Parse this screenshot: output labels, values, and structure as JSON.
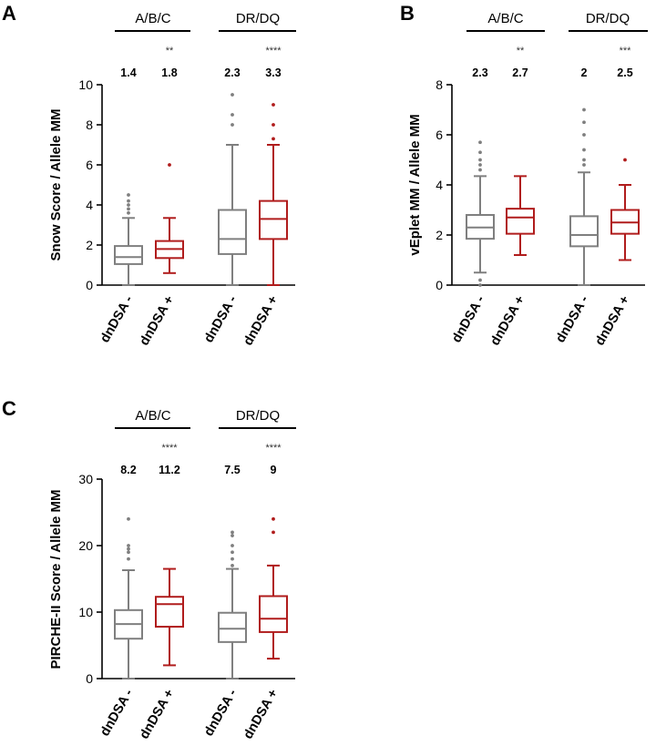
{
  "chart_data": [
    {
      "type": "box",
      "panel": "A",
      "ylabel": "Snow Score / Allele MM",
      "ylim": [
        0,
        10
      ],
      "yticks": [
        0,
        2,
        4,
        6,
        8,
        10
      ],
      "groups": [
        "A/B/C",
        "DR/DQ"
      ],
      "categories": [
        "dnDSA -",
        "dnDSA +",
        "dnDSA -",
        "dnDSA +"
      ],
      "median_labels": [
        "1.4",
        "1.8",
        "2.3",
        "3.3"
      ],
      "significance": [
        "",
        "**",
        "",
        "****"
      ],
      "series": [
        {
          "name": "A/B/C dnDSA -",
          "color": "#7f7f7f",
          "min": 0,
          "q1": 1.05,
          "median": 1.4,
          "q3": 1.95,
          "max": 3.35,
          "outliers": [
            3.6,
            3.8,
            4.0,
            4.2,
            4.5
          ]
        },
        {
          "name": "A/B/C dnDSA +",
          "color": "#b01c1c",
          "min": 0.6,
          "q1": 1.35,
          "median": 1.8,
          "q3": 2.2,
          "max": 3.35,
          "outliers": [
            6.0
          ]
        },
        {
          "name": "DR/DQ dnDSA -",
          "color": "#7f7f7f",
          "min": 0,
          "q1": 1.55,
          "median": 2.3,
          "q3": 3.75,
          "max": 7.0,
          "outliers": [
            8.0,
            8.5,
            9.5
          ]
        },
        {
          "name": "DR/DQ dnDSA +",
          "color": "#b01c1c",
          "min": 0,
          "q1": 2.3,
          "median": 3.3,
          "q3": 4.2,
          "max": 7.0,
          "outliers": [
            7.3,
            8.0,
            9.0
          ]
        }
      ]
    },
    {
      "type": "box",
      "panel": "B",
      "ylabel": "vEplet MM / Allele  MM",
      "ylim": [
        0,
        8
      ],
      "yticks": [
        0,
        2,
        4,
        6,
        8
      ],
      "groups": [
        "A/B/C",
        "DR/DQ"
      ],
      "categories": [
        "dnDSA -",
        "dnDSA +",
        "dnDSA -",
        "dnDSA +"
      ],
      "median_labels": [
        "2.3",
        "2.7",
        "2",
        "2.5"
      ],
      "significance": [
        "",
        "**",
        "",
        "***"
      ],
      "series": [
        {
          "name": "A/B/C dnDSA -",
          "color": "#7f7f7f",
          "min": 0.5,
          "q1": 1.85,
          "median": 2.3,
          "q3": 2.8,
          "max": 4.35,
          "outliers": [
            0,
            0.2,
            4.6,
            4.8,
            5.0,
            5.3,
            5.7
          ]
        },
        {
          "name": "A/B/C dnDSA +",
          "color": "#b01c1c",
          "min": 1.2,
          "q1": 2.05,
          "median": 2.7,
          "q3": 3.05,
          "max": 4.35,
          "outliers": []
        },
        {
          "name": "DR/DQ dnDSA -",
          "color": "#7f7f7f",
          "min": 0,
          "q1": 1.55,
          "median": 2.0,
          "q3": 2.75,
          "max": 4.5,
          "outliers": [
            4.8,
            5.0,
            5.4,
            6.0,
            6.5,
            7.0
          ]
        },
        {
          "name": "DR/DQ dnDSA +",
          "color": "#b01c1c",
          "min": 1.0,
          "q1": 2.05,
          "median": 2.5,
          "q3": 3.0,
          "max": 4.0,
          "outliers": [
            5.0
          ]
        }
      ]
    },
    {
      "type": "box",
      "panel": "C",
      "ylabel": "PIRCHE-II Score / Allele  MM",
      "ylim": [
        0,
        30
      ],
      "yticks": [
        0,
        10,
        20,
        30
      ],
      "groups": [
        "A/B/C",
        "DR/DQ"
      ],
      "categories": [
        "dnDSA -",
        "dnDSA +",
        "dnDSA -",
        "dnDSA +"
      ],
      "median_labels": [
        "8.2",
        "11.2",
        "7.5",
        "9"
      ],
      "significance": [
        "",
        "****",
        "",
        "****"
      ],
      "series": [
        {
          "name": "A/B/C dnDSA -",
          "color": "#7f7f7f",
          "min": 0,
          "q1": 6.0,
          "median": 8.2,
          "q3": 10.3,
          "max": 16.3,
          "outliers": [
            18.0,
            19.0,
            19.5,
            20.0,
            24.0
          ]
        },
        {
          "name": "A/B/C dnDSA +",
          "color": "#b01c1c",
          "min": 2.0,
          "q1": 7.8,
          "median": 11.2,
          "q3": 12.3,
          "max": 16.5,
          "outliers": []
        },
        {
          "name": "DR/DQ dnDSA -",
          "color": "#7f7f7f",
          "min": 0,
          "q1": 5.5,
          "median": 7.5,
          "q3": 9.9,
          "max": 16.5,
          "outliers": [
            17.0,
            18.0,
            19.0,
            20.0,
            21.5,
            22.0
          ]
        },
        {
          "name": "DR/DQ dnDSA +",
          "color": "#b01c1c",
          "min": 3.0,
          "q1": 7.0,
          "median": 9.0,
          "q3": 12.4,
          "max": 17.0,
          "outliers": [
            22.0,
            24.0
          ]
        }
      ]
    }
  ]
}
